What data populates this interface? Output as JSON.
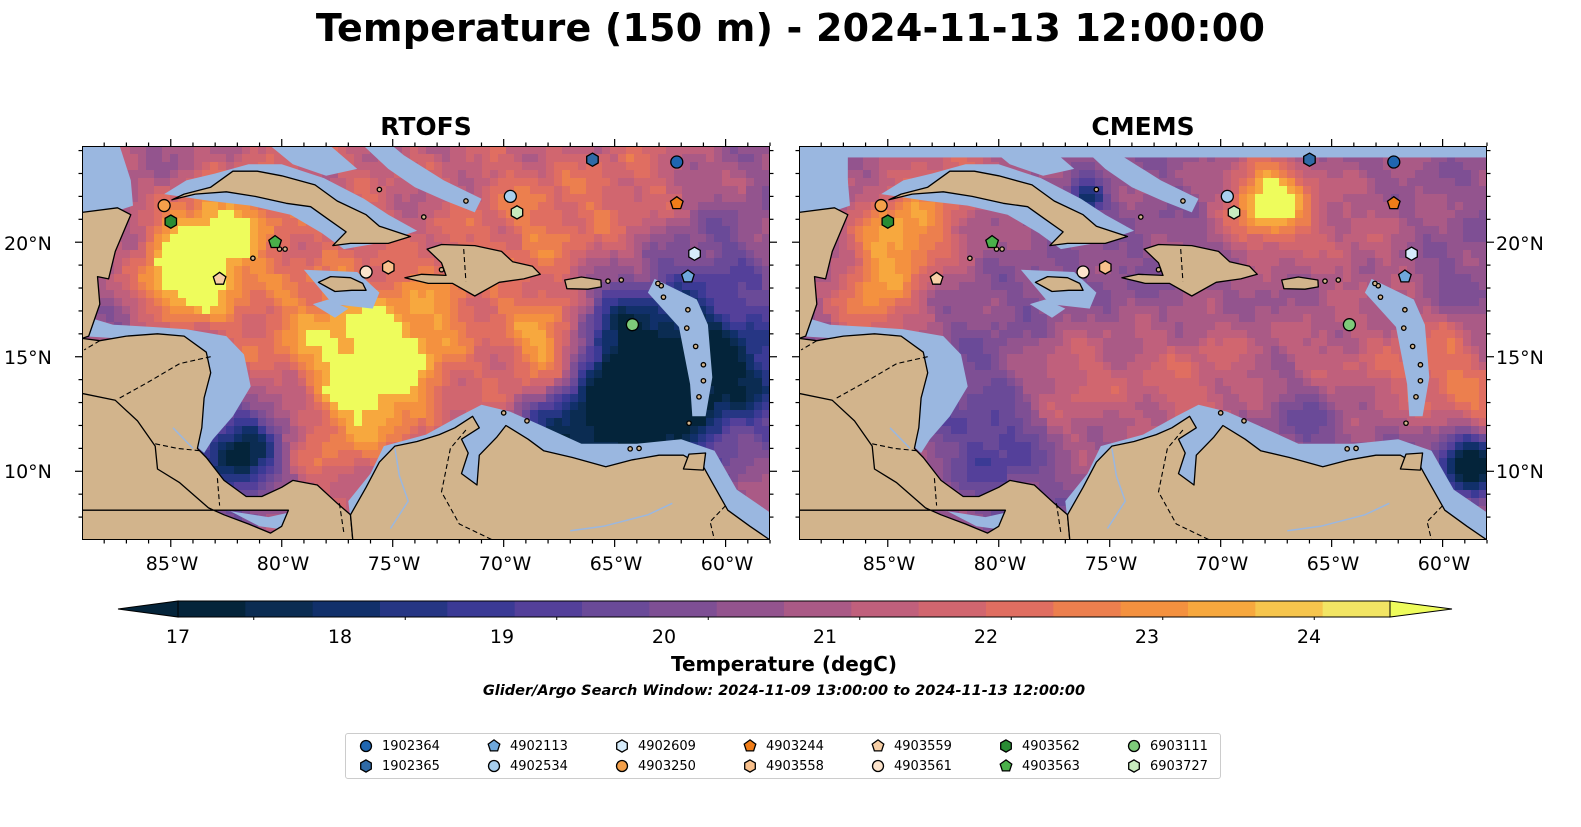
{
  "figure": {
    "title": "Temperature (150 m) - 2024-11-13 12:00:00",
    "search_window_note": "Glider/Argo Search Window: 2024-11-09 13:00:00 to 2024-11-13 12:00:00"
  },
  "panels": [
    {
      "title": "RTOFS"
    },
    {
      "title": "CMEMS"
    }
  ],
  "axes": {
    "lon_range": [
      -89,
      -58
    ],
    "lat_range": [
      7,
      24.2
    ],
    "x_tick_labels": [
      "85°W",
      "80°W",
      "75°W",
      "70°W",
      "65°W",
      "60°W"
    ],
    "x_tick_values": [
      -85,
      -80,
      -75,
      -70,
      -65,
      -60
    ],
    "y_tick_labels": [
      "20°N",
      "15°N",
      "10°N"
    ],
    "y_tick_values": [
      20,
      15,
      10
    ]
  },
  "colorbar": {
    "label": "Temperature (degC)",
    "range": [
      16.5,
      24.5
    ],
    "step": 0.5,
    "extend": "both",
    "tick_labels": [
      "17",
      "18",
      "19",
      "20",
      "21",
      "22",
      "23",
      "24"
    ],
    "tick_values": [
      17,
      18,
      19,
      20,
      21,
      22,
      23,
      24
    ],
    "colors": [
      "#04243a",
      "#0b2c52",
      "#11306a",
      "#263684",
      "#3b3a95",
      "#54409a",
      "#6a4a98",
      "#7e4f94",
      "#93548e",
      "#aa5a86",
      "#c0607c",
      "#d1666f",
      "#e06e61",
      "#ec7f4e",
      "#f4913f",
      "#f7a83e",
      "#f6c54d",
      "#f2e564"
    ],
    "under_color": "#04243a",
    "over_color": "#eefc5c"
  },
  "map_colors": {
    "land": "#d2b48c",
    "shelf": "#9ab7e0",
    "ocean_mid": "#a4598a"
  },
  "floats": [
    {
      "id": "1902364",
      "marker": "circle",
      "color": "#1f66b0",
      "lon": -62.2,
      "lat": 23.5
    },
    {
      "id": "1902365",
      "marker": "hexagon",
      "color": "#2f6aa6",
      "lon": -66.0,
      "lat": 23.6
    },
    {
      "id": "4902113",
      "marker": "pentagon",
      "color": "#6fa8dc",
      "lon": -61.7,
      "lat": 18.5
    },
    {
      "id": "4902534",
      "marker": "circle",
      "color": "#a8cfee",
      "lon": -69.7,
      "lat": 22.0
    },
    {
      "id": "4902609",
      "marker": "hexagon",
      "color": "#d6ecfb",
      "lon": -61.4,
      "lat": 19.5
    },
    {
      "id": "4903250",
      "marker": "circle",
      "color": "#f4a04a",
      "lon": -85.3,
      "lat": 21.6
    },
    {
      "id": "4903244",
      "marker": "pentagon",
      "color": "#f07d19",
      "lon": -62.2,
      "lat": 21.7
    },
    {
      "id": "4903558",
      "marker": "hexagon",
      "color": "#f8c08c",
      "lon": -75.2,
      "lat": 18.9
    },
    {
      "id": "4903559",
      "marker": "pentagon",
      "color": "#f7cfa6",
      "lon": -82.8,
      "lat": 18.4
    },
    {
      "id": "4903561",
      "marker": "circle",
      "color": "#fde4cc",
      "lon": -76.2,
      "lat": 18.7
    },
    {
      "id": "4903562",
      "marker": "hexagon",
      "color": "#2a8c34",
      "lon": -85.0,
      "lat": 20.9
    },
    {
      "id": "4903563",
      "marker": "pentagon",
      "color": "#4ab04a",
      "lon": -80.3,
      "lat": 20.0
    },
    {
      "id": "6903111",
      "marker": "circle",
      "color": "#7ecb7a",
      "lon": -64.2,
      "lat": 16.4
    },
    {
      "id": "6903727",
      "marker": "hexagon",
      "color": "#c8ebbf",
      "lon": -69.4,
      "lat": 21.3
    }
  ]
}
